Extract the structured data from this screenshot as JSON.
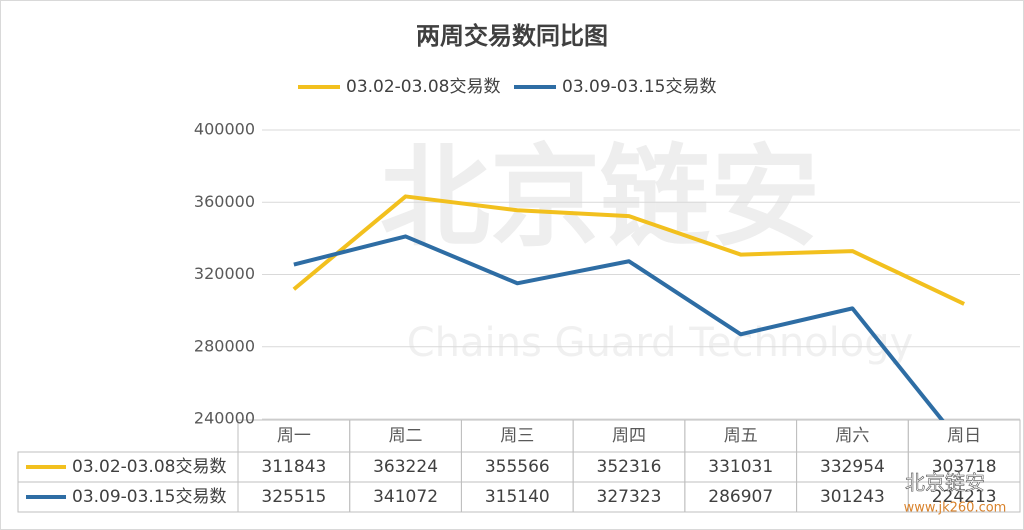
{
  "chart_data": {
    "type": "line",
    "title": "两周交易数同比图",
    "categories": [
      "周一",
      "周二",
      "周三",
      "周四",
      "周五",
      "周六",
      "周日"
    ],
    "series": [
      {
        "name": "03.02-03.08交易数",
        "color": "#f2c01e",
        "values": [
          311843,
          363224,
          355566,
          352316,
          331031,
          332954,
          303718
        ]
      },
      {
        "name": "03.09-03.15交易数",
        "color": "#2e6da4",
        "values": [
          325515,
          341072,
          315140,
          327323,
          286907,
          301243,
          224213
        ]
      }
    ],
    "ylim": [
      240000,
      400000
    ],
    "yticks": [
      240000,
      280000,
      320000,
      360000,
      400000
    ],
    "grid": true,
    "legend": "top",
    "watermark": {
      "cn": "北京链安",
      "en": "Chains Guard Technology"
    },
    "footer_logo": "北京链安",
    "footer_url": "www.jk260.com"
  }
}
